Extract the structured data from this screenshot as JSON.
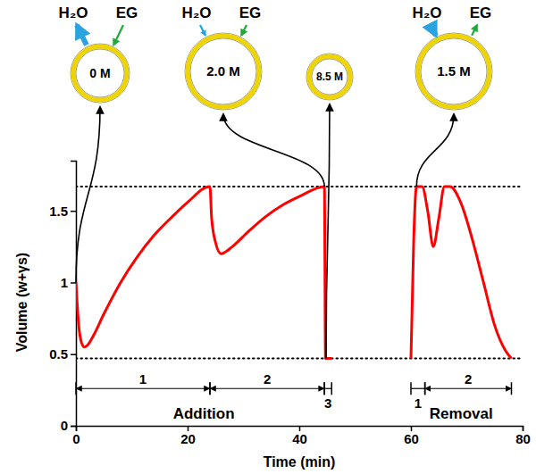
{
  "chart_data": {
    "type": "line",
    "x_label": "Time (min)",
    "y_label": "Volume (w+γs)",
    "x": [
      0,
      0.5,
      1,
      1.5,
      2,
      3,
      5,
      8,
      11,
      14,
      17,
      20,
      24,
      24.3,
      25,
      26,
      28,
      31,
      34,
      37,
      40,
      44.5,
      44.7,
      45.8,
      52,
      60,
      60.5,
      61,
      62,
      63,
      64,
      65,
      66,
      67,
      69,
      71,
      73,
      75,
      77,
      78
    ],
    "series": [
      {
        "color": "#ff0000",
        "values": [
          1,
          0.7,
          0.58,
          0.55,
          0.56,
          0.62,
          0.78,
          1.0,
          1.18,
          1.33,
          1.45,
          1.56,
          1.67,
          1.45,
          1.28,
          1.2,
          1.25,
          1.36,
          1.46,
          1.54,
          1.6,
          1.67,
          0.47,
          0.47,
          null,
          0.47,
          1.3,
          1.67,
          1.67,
          1.5,
          1.25,
          1.45,
          1.67,
          1.67,
          1.55,
          1.3,
          1.0,
          0.7,
          0.52,
          0.47
        ]
      }
    ],
    "xlim": [
      0,
      80
    ],
    "xticks": [
      0,
      20,
      40,
      60,
      80
    ],
    "ylim": [
      0,
      1.85
    ],
    "yticks": [
      0,
      0.5,
      1,
      1.5
    ],
    "reference_lines": [
      1.67,
      0.47
    ],
    "intervals": [
      {
        "label": "1",
        "start": 0,
        "end": 24
      },
      {
        "label": "2",
        "start": 24,
        "end": 44.5
      },
      {
        "label": "3",
        "start": 44.5,
        "end": 45.8
      },
      {
        "label": "1",
        "start": 60,
        "end": 62.5
      },
      {
        "label": "2",
        "start": 62.5,
        "end": 78
      }
    ],
    "phases": [
      {
        "label": "Addition",
        "start": 0,
        "end": 45.8
      },
      {
        "label": "Removal",
        "start": 60,
        "end": 78
      }
    ],
    "annotations": [
      {
        "label": "0 M",
        "point": [
          0,
          1
        ],
        "arrows": [
          "H₂O",
          "EG"
        ]
      },
      {
        "label": "2.0 M",
        "point": [
          44.5,
          1.67
        ],
        "arrows": [
          "H₂O",
          "EG"
        ]
      },
      {
        "label": "8.5 M",
        "point": [
          44.8,
          0.47
        ]
      },
      {
        "label": "1.5 M",
        "point": [
          61,
          1.67
        ],
        "arrows": [
          "H₂O",
          "EG"
        ]
      }
    ]
  }
}
